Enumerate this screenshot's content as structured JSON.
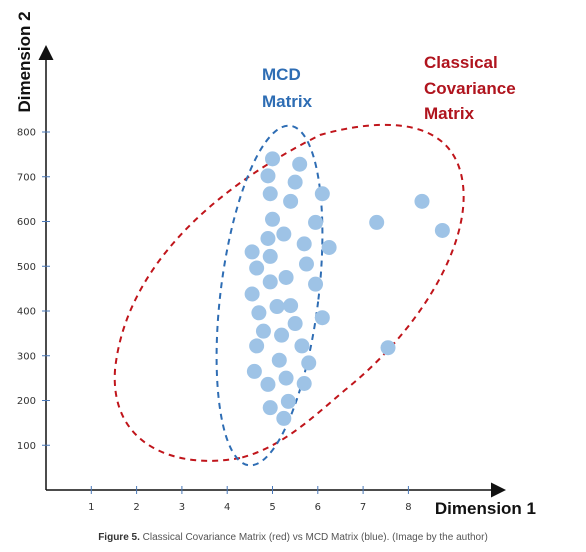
{
  "chart_data": {
    "type": "scatter",
    "title": "",
    "xlabel": "Dimension 1",
    "ylabel": "Dimension 2",
    "xlim": [
      0,
      9.2
    ],
    "ylim": [
      0,
      880
    ],
    "xticks": [
      1,
      2,
      3,
      4,
      5,
      6,
      7,
      8
    ],
    "yticks": [
      100,
      200,
      300,
      400,
      500,
      600,
      700,
      800
    ],
    "grid": false,
    "legend": "none",
    "point_color": "#9EC3E6",
    "points": [
      {
        "x": 5.0,
        "y": 740
      },
      {
        "x": 5.6,
        "y": 728
      },
      {
        "x": 4.9,
        "y": 702
      },
      {
        "x": 5.5,
        "y": 688
      },
      {
        "x": 4.95,
        "y": 662
      },
      {
        "x": 5.4,
        "y": 645
      },
      {
        "x": 6.1,
        "y": 662
      },
      {
        "x": 5.0,
        "y": 605
      },
      {
        "x": 5.25,
        "y": 572
      },
      {
        "x": 4.9,
        "y": 562
      },
      {
        "x": 5.95,
        "y": 598
      },
      {
        "x": 5.7,
        "y": 550
      },
      {
        "x": 4.55,
        "y": 532
      },
      {
        "x": 4.95,
        "y": 522
      },
      {
        "x": 6.25,
        "y": 542
      },
      {
        "x": 5.75,
        "y": 505
      },
      {
        "x": 4.65,
        "y": 496
      },
      {
        "x": 5.3,
        "y": 475
      },
      {
        "x": 4.95,
        "y": 465
      },
      {
        "x": 5.95,
        "y": 460
      },
      {
        "x": 4.55,
        "y": 438
      },
      {
        "x": 5.4,
        "y": 412
      },
      {
        "x": 5.1,
        "y": 410
      },
      {
        "x": 4.7,
        "y": 396
      },
      {
        "x": 6.1,
        "y": 385
      },
      {
        "x": 5.5,
        "y": 372
      },
      {
        "x": 4.8,
        "y": 355
      },
      {
        "x": 5.2,
        "y": 346
      },
      {
        "x": 4.65,
        "y": 322
      },
      {
        "x": 5.65,
        "y": 322
      },
      {
        "x": 5.15,
        "y": 290
      },
      {
        "x": 5.8,
        "y": 284
      },
      {
        "x": 4.6,
        "y": 265
      },
      {
        "x": 5.3,
        "y": 250
      },
      {
        "x": 4.9,
        "y": 236
      },
      {
        "x": 5.7,
        "y": 238
      },
      {
        "x": 5.35,
        "y": 198
      },
      {
        "x": 4.95,
        "y": 184
      },
      {
        "x": 5.25,
        "y": 160
      },
      {
        "x": 7.3,
        "y": 598
      },
      {
        "x": 8.3,
        "y": 645
      },
      {
        "x": 8.75,
        "y": 580
      },
      {
        "x": 7.55,
        "y": 318
      }
    ],
    "annotations": [
      {
        "text": "MCD",
        "color": "#2E6DB4"
      },
      {
        "text": "Matrix",
        "color": "#2E6DB4"
      },
      {
        "text": "Classical",
        "color": "#B0141E"
      },
      {
        "text": "Covariance",
        "color": "#B0141E"
      },
      {
        "text": "Matrix",
        "color": "#B0141E"
      }
    ],
    "mcd_ellipse_color": "#2E6DB4",
    "classical_ellipse_color": "#C0151B"
  },
  "caption": {
    "label": "Figure 5.",
    "text": "Classical Covariance Matrix (red) vs MCD Matrix (blue). (Image by the author)"
  }
}
